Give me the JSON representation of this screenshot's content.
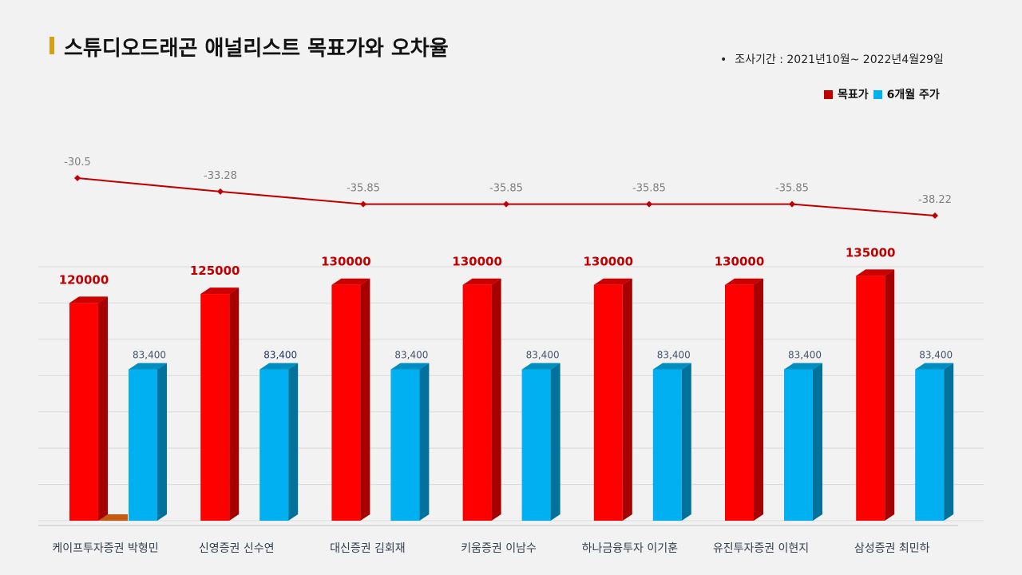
{
  "header": {
    "title": "스튜디오드래곤 애널리스트 목표가와 오차율",
    "period": "조사기간 : 2021년10월~ 2022년4월29일",
    "bullet": "•"
  },
  "legend": {
    "items": [
      {
        "label": "목표가",
        "color": "#c00000"
      },
      {
        "label": "6개월 주가",
        "color": "#00b0f0"
      }
    ]
  },
  "colors": {
    "target": "#ff0000",
    "price": "#00b0f0",
    "line": "#c00000",
    "label_target": "#c00000"
  },
  "chart_data": [
    {
      "type": "line",
      "categories": [
        "케이프투자증권 박형민",
        "신영증권 신수연",
        "대신증권 김회재",
        "키움증권 이남수",
        "하나금융투자 이기훈",
        "유진투자증권 이현지",
        "삼성증권 최민하"
      ],
      "series": [
        {
          "values": [
            -30.5,
            -33.28,
            -35.85,
            -35.85,
            -35.85,
            -35.85,
            -38.22
          ]
        }
      ],
      "data_labels": [
        "-30.5",
        "-33.28",
        "-35.85",
        "-35.85",
        "-35.85",
        "-35.85",
        "-38.22"
      ]
    },
    {
      "type": "bar",
      "categories": [
        "케이프투자증권 박형민",
        "신영증권 신수연",
        "대신증권 김회재",
        "키움증권 이남수",
        "하나금융투자 이기훈",
        "유진투자증권 이현지",
        "삼성증권 최민하"
      ],
      "series": [
        {
          "name": "목표가",
          "values": [
            120000,
            125000,
            130000,
            130000,
            130000,
            130000,
            135000
          ],
          "labels": [
            "120000",
            "125000",
            "130000",
            "130000",
            "130000",
            "130000",
            "135000"
          ]
        },
        {
          "name": "6개월 주가",
          "values": [
            83400,
            83400,
            83400,
            83400,
            83400,
            83400,
            83400
          ],
          "labels": [
            "83,400",
            "83,400",
            "83,400",
            "83,400",
            "83,400",
            "83,400",
            "83,400"
          ]
        }
      ],
      "ylim": [
        0,
        140000
      ],
      "grid": true
    }
  ]
}
